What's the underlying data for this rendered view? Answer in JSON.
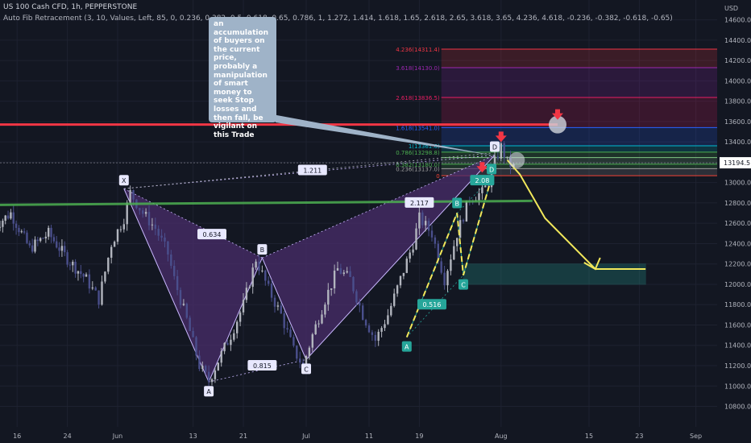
{
  "header": {
    "symbol": "US 100 Cash CFD, 1h, PEPPERSTONE",
    "indicator": "Auto Fib Retracement (3, 10, Values, Left, 85, 0, 0.236, 0.382, 0.5, 0.618, 0.65, 0.786, 1, 1.272, 1.414, 1.618, 1.65, 2.618, 2.65, 3.618, 3.65, 4.236, 4.618, -0.236, -0.382, -0.618, -0.65)"
  },
  "annotation": {
    "text": "an accumulation of buyers on the current price, probably a manipulation of smart money to seek Stop losses and then fall, be vigilant on this Trade"
  },
  "colors": {
    "background": "#131722",
    "candle_up": "#b2b5be",
    "candle_down": "#4a4f8c",
    "pattern_fill": "#4a2e6b",
    "resistance_line": "#f23645",
    "support_line": "#4caf50",
    "projection_arrow": "#f2e85b",
    "target_zone": "#26a69a"
  },
  "chart_data": {
    "type": "candlestick",
    "title": "",
    "currency": "USD",
    "ylim": [
      10550,
      14800
    ],
    "y_ticks": [
      10800,
      11000,
      11200,
      11400,
      11600,
      11800,
      12000,
      12200,
      12400,
      12600,
      12800,
      13000,
      13200,
      13400,
      13600,
      13800,
      14000,
      14200,
      14400,
      14600
    ],
    "x_ticks": [
      {
        "label": "16",
        "day": -16
      },
      {
        "label": "24",
        "day": -8
      },
      {
        "label": "Jun",
        "day": 0
      },
      {
        "label": "13",
        "day": 12
      },
      {
        "label": "21",
        "day": 20
      },
      {
        "label": "Jul",
        "day": 30
      },
      {
        "label": "11",
        "day": 40
      },
      {
        "label": "19",
        "day": 48
      },
      {
        "label": "Aug",
        "day": 61
      },
      {
        "label": "15",
        "day": 75
      },
      {
        "label": "23",
        "day": 83
      },
      {
        "label": "Sep",
        "day": 92
      }
    ],
    "current_price": {
      "value": 13194.5,
      "label": "13194.5"
    },
    "close_path": [
      [
        -20,
        12550
      ],
      [
        -17,
        12700
      ],
      [
        -14,
        12350
      ],
      [
        -11,
        12500
      ],
      [
        -8,
        12250
      ],
      [
        -5,
        12050
      ],
      [
        -3,
        11850
      ],
      [
        -1,
        12400
      ],
      [
        1,
        12650
      ],
      [
        2,
        12900
      ],
      [
        4,
        12700
      ],
      [
        6,
        12550
      ],
      [
        8,
        12300
      ],
      [
        9,
        12050
      ],
      [
        11,
        11650
      ],
      [
        13,
        11200
      ],
      [
        14.5,
        11050
      ],
      [
        16,
        11250
      ],
      [
        18,
        11500
      ],
      [
        20,
        11800
      ],
      [
        22,
        12250
      ],
      [
        24,
        11950
      ],
      [
        26,
        11700
      ],
      [
        28,
        11350
      ],
      [
        29.5,
        11200
      ],
      [
        31,
        11500
      ],
      [
        33,
        11850
      ],
      [
        35,
        12150
      ],
      [
        37,
        12050
      ],
      [
        39,
        11700
      ],
      [
        41,
        11450
      ],
      [
        43,
        11700
      ],
      [
        45,
        12050
      ],
      [
        47,
        12400
      ],
      [
        48,
        12650
      ],
      [
        50,
        12500
      ],
      [
        52,
        12050
      ],
      [
        54,
        12500
      ],
      [
        56,
        12850
      ],
      [
        58,
        12900
      ],
      [
        59,
        13000
      ],
      [
        60,
        13200
      ],
      [
        61,
        13350
      ],
      [
        62,
        13200
      ],
      [
        63,
        13150
      ]
    ],
    "harmonic_1": {
      "points": [
        {
          "label": "X",
          "day": 1,
          "value": 12940
        },
        {
          "label": "A",
          "day": 14.5,
          "value": 11040
        },
        {
          "label": "B",
          "day": 23,
          "value": 12260
        },
        {
          "label": "C",
          "day": 30,
          "value": 11260
        },
        {
          "label": "D",
          "day": 60,
          "value": 13270
        }
      ],
      "ratios": [
        {
          "label": "0.634",
          "day": 15,
          "value": 12490
        },
        {
          "label": "0.815",
          "day": 23,
          "value": 11200
        },
        {
          "label": "1.211",
          "day": 31,
          "value": 13120
        },
        {
          "label": "2.117",
          "day": 48,
          "value": 12800
        }
      ]
    },
    "harmonic_2": {
      "points": [
        {
          "label": "A",
          "day": 46,
          "value": 11480
        },
        {
          "label": "B",
          "day": 54,
          "value": 12700
        },
        {
          "label": "C",
          "day": 55,
          "value": 12090
        },
        {
          "label": "D",
          "day": 59.5,
          "value": 13050
        }
      ],
      "ratios": [
        {
          "label": "0.516",
          "day": 50,
          "value": 11800
        },
        {
          "label": "2.08",
          "day": 58,
          "value": 13020
        }
      ]
    },
    "fib_levels": [
      {
        "label": "4.236(14311.4)",
        "value": 14311.4
      },
      {
        "label": "3.618(14130.0)",
        "value": 14130.0
      },
      {
        "label": "2.618(13836.5)",
        "value": 13836.5
      },
      {
        "label": "1.618(13541.0)",
        "value": 13541.0
      },
      {
        "label": "1(13361.6)",
        "value": 13361.6
      },
      {
        "label": "0.786(13298.8)",
        "value": 13298.8
      },
      {
        "label": "",
        "value": 13246.0
      },
      {
        "label": "0.382(13180.0)",
        "value": 13180.0
      },
      {
        "label": "0.236(13137.0)",
        "value": 13137.0
      },
      {
        "label": "0",
        "value": 13068.0
      }
    ],
    "resistance": {
      "value": 13570
    },
    "support": {
      "start_day": -21,
      "start_value": 12780,
      "end_day": 66,
      "end_value": 12820
    },
    "target_zone": {
      "start_day": 55,
      "end_day": 84,
      "top": 12200,
      "bottom": 12000
    },
    "projection": [
      [
        62,
        13220
      ],
      [
        64,
        13080
      ],
      [
        68,
        12650
      ],
      [
        72,
        12400
      ],
      [
        76,
        12150
      ],
      [
        84,
        12150
      ],
      [
        86,
        12300
      ]
    ]
  }
}
